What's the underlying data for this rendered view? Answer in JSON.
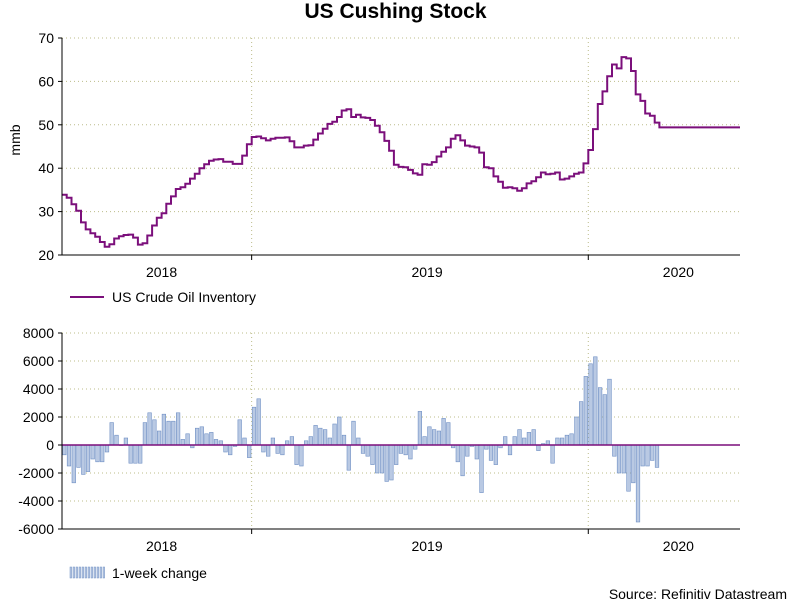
{
  "title": "US Cushing Stock",
  "source": "Source: Refinitiv Datastream",
  "colors": {
    "line": "#7b0f7b",
    "bar_fill": "#b9c9e3",
    "bar_edge": "#6f8fc4",
    "grid": "#bcbc8a",
    "axis": "#000000"
  },
  "chart_data": [
    {
      "type": "line",
      "title": "US Cushing Stock",
      "ylabel": "mmb",
      "xlabel": "",
      "ylim": [
        20,
        70
      ],
      "yticks": [
        20,
        30,
        40,
        50,
        60,
        70
      ],
      "xlim": [
        0,
        143
      ],
      "year_ticks": [
        {
          "label": "2018",
          "week": 21
        },
        {
          "label": "2019",
          "week": 77
        },
        {
          "label": "2020",
          "week": 130
        }
      ],
      "year_boundaries": [
        40,
        111
      ],
      "legend": "US Crude Oil Inventory",
      "series": [
        {
          "name": "US Crude Oil Inventory",
          "values": [
            33.9,
            33.2,
            31.7,
            30.2,
            27.5,
            25.9,
            25.0,
            24.2,
            23.0,
            21.9,
            22.5,
            23.8,
            24.3,
            24.6,
            24.7,
            24.0,
            22.4,
            22.7,
            24.5,
            26.8,
            28.6,
            29.6,
            31.8,
            33.5,
            35.2,
            35.6,
            36.4,
            37.6,
            38.7,
            40.0,
            40.9,
            41.7,
            42.0,
            42.1,
            41.5,
            41.5,
            41.0,
            41.0,
            42.9,
            45.5,
            47.2,
            47.3,
            46.9,
            46.4,
            46.8,
            47.0,
            47.0,
            47.1,
            46.2,
            44.8,
            44.8,
            45.2,
            45.3,
            46.6,
            48.0,
            49.1,
            50.2,
            50.7,
            51.8,
            53.3,
            53.6,
            51.8,
            52.3,
            51.7,
            51.6,
            51.1,
            49.8,
            48.3,
            46.3,
            44.0,
            40.8,
            40.3,
            40.2,
            39.6,
            38.8,
            38.5,
            40.9,
            40.8,
            41.4,
            42.7,
            43.8,
            44.8,
            46.8,
            47.6,
            46.4,
            45.2,
            45.0,
            44.8,
            43.6,
            40.2,
            40.0,
            38.1,
            36.9,
            35.5,
            35.6,
            35.4,
            34.8,
            35.4,
            36.5,
            37.0,
            37.9,
            39.0,
            38.6,
            38.7,
            39.0,
            37.4,
            37.6,
            38.1,
            38.7,
            39.0,
            41.1,
            44.2,
            49.0,
            54.8,
            57.7,
            61.2,
            63.9,
            63.0,
            65.6,
            65.3,
            62.4,
            57.0,
            55.5,
            52.6,
            52.1,
            50.5,
            49.4
          ]
        }
      ]
    },
    {
      "type": "bar",
      "ylabel": "",
      "xlabel": "",
      "ylim": [
        -6000,
        8000
      ],
      "yticks": [
        -6000,
        -4000,
        -2000,
        0,
        2000,
        4000,
        6000,
        8000
      ],
      "xlim": [
        0,
        143
      ],
      "year_ticks": [
        {
          "label": "2018",
          "week": 21
        },
        {
          "label": "2019",
          "week": 77
        },
        {
          "label": "2020",
          "week": 130
        }
      ],
      "year_boundaries": [
        40,
        111
      ],
      "legend": "1-week change",
      "series": [
        {
          "name": "1-week change",
          "values": [
            -700,
            -1500,
            -2700,
            -1600,
            -2100,
            -1900,
            -1000,
            -1200,
            -1200,
            -500,
            1600,
            700,
            0,
            500,
            -1300,
            -1300,
            -1300,
            1600,
            2300,
            1800,
            1000,
            2200,
            1700,
            1700,
            2300,
            400,
            800,
            -200,
            1200,
            1300,
            800,
            900,
            400,
            300,
            -500,
            -700,
            -100,
            1800,
            500,
            -900,
            2700,
            3300,
            -500,
            -800,
            500,
            -600,
            -700,
            300,
            600,
            -1400,
            -1500,
            300,
            600,
            1400,
            1200,
            1100,
            500,
            1500,
            2000,
            700,
            -1800,
            1700,
            500,
            -600,
            -800,
            -1400,
            -2000,
            -2000,
            -2600,
            -2500,
            -1400,
            -600,
            -700,
            -1000,
            -300,
            2400,
            600,
            1300,
            1100,
            1000,
            1900,
            1600,
            -200,
            -1200,
            -2200,
            -800,
            -100,
            -1000,
            -3400,
            -300,
            -1100,
            -1400,
            -200,
            600,
            -700,
            600,
            1100,
            500,
            900,
            1100,
            -400,
            100,
            300,
            -1300,
            500,
            500,
            700,
            800,
            2000,
            3100,
            4900,
            5800,
            6300,
            4100,
            3600,
            4700,
            -800,
            -2000,
            -2000,
            -3300,
            -2700,
            -5500,
            -1500,
            -1500,
            -1100,
            -1600
          ]
        }
      ]
    }
  ]
}
